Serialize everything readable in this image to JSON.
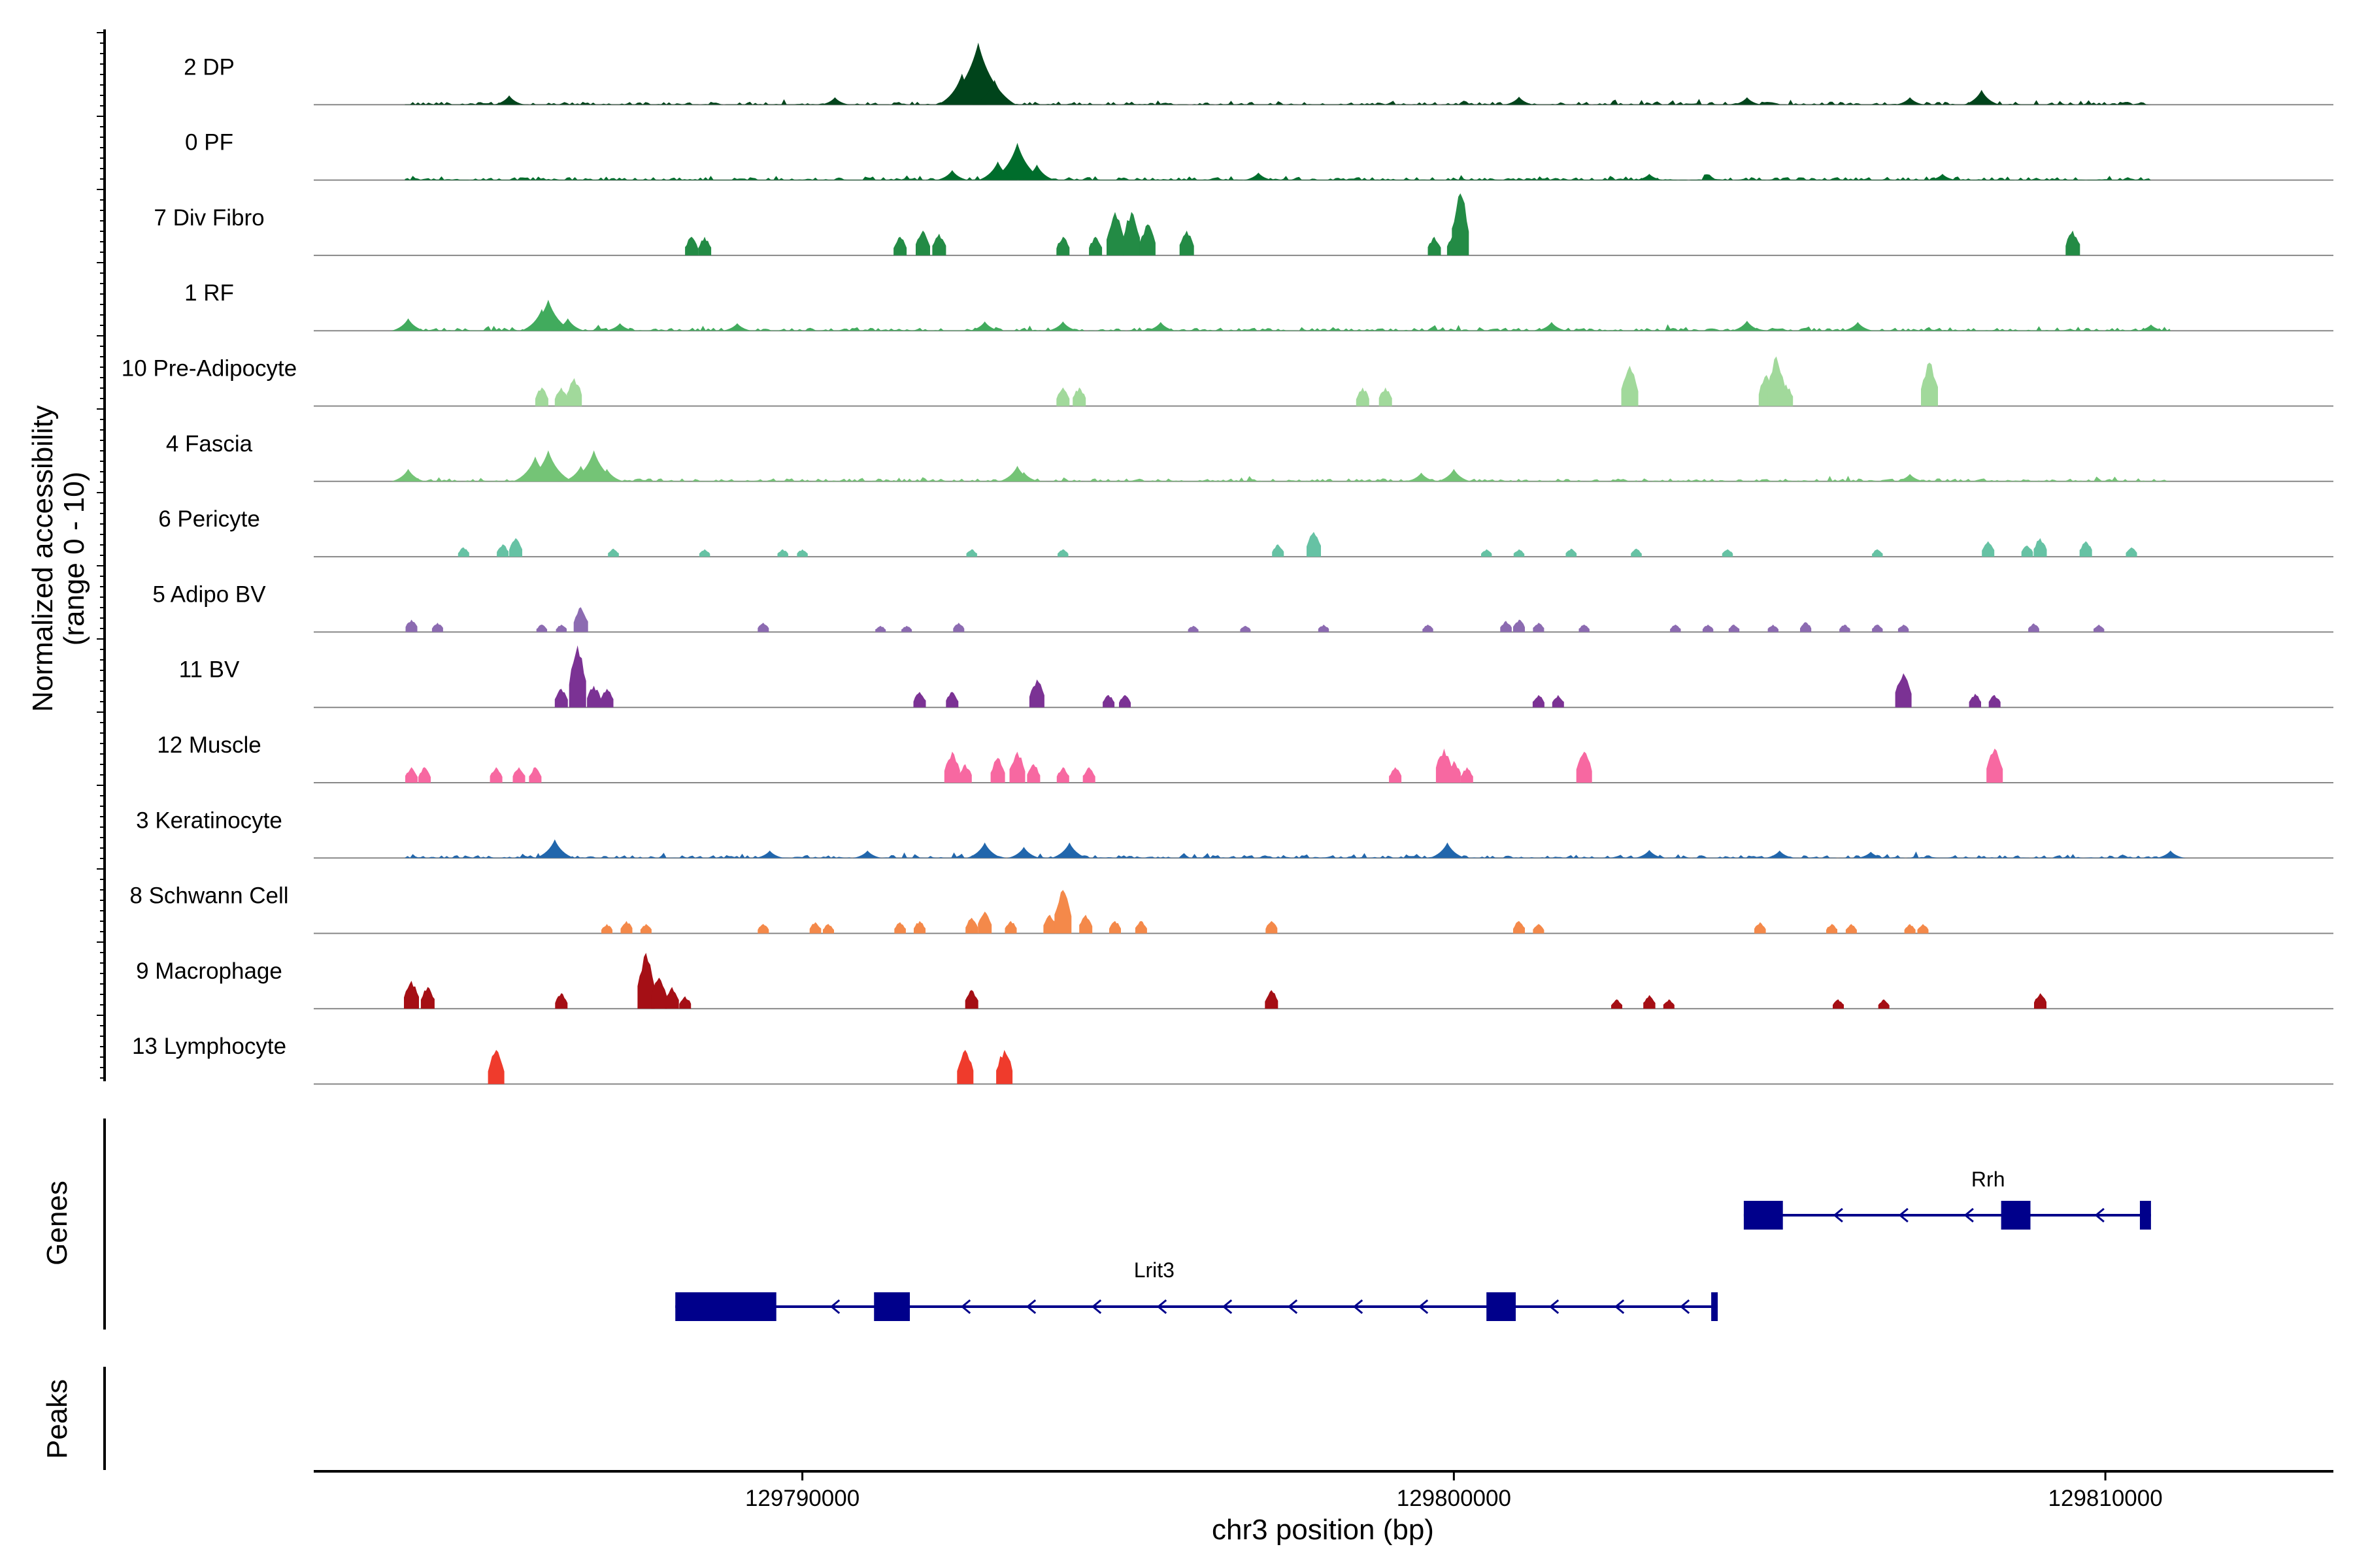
{
  "chart_data": {
    "type": "coverage_tracks",
    "title": "",
    "ylabel": [
      "Normalized accessibility",
      "(range 0 - 10)"
    ],
    "ylim": [
      0,
      10
    ],
    "xlabel": "chr3 position (bp)",
    "xlim": [
      129782500,
      129813500
    ],
    "xticks": [
      129790000,
      129800000,
      129810000
    ],
    "xtick_labels": [
      "129790000",
      "129800000",
      "129810000"
    ],
    "tracks": [
      {
        "name": "2 DP",
        "color": "#00441b",
        "style": "dense",
        "range": [
          129783900,
          129810700
        ],
        "peaks": [
          [
            129792700,
            10
          ],
          [
            129792450,
            5
          ],
          [
            129792950,
            4
          ],
          [
            129785500,
            1.5
          ],
          [
            129790500,
            1.2
          ],
          [
            129801000,
            1.3
          ],
          [
            129808100,
            2.4
          ],
          [
            129807000,
            1.2
          ],
          [
            129804500,
            1.2
          ]
        ]
      },
      {
        "name": "0 PF",
        "color": "#006d2c",
        "style": "dense",
        "range": [
          129783900,
          129810700
        ],
        "peaks": [
          [
            129793300,
            6
          ],
          [
            129793000,
            3
          ],
          [
            129793600,
            2.5
          ],
          [
            129792300,
            1.6
          ],
          [
            129797000,
            1.2
          ],
          [
            129803000,
            1
          ],
          [
            129807500,
            1
          ]
        ]
      },
      {
        "name": "7 Div Fibro",
        "color": "#238b45",
        "style": "sparse",
        "peaks": [
          [
            129788300,
            3
          ],
          [
            129788500,
            3
          ],
          [
            129791500,
            3
          ],
          [
            129791850,
            4
          ],
          [
            129792100,
            3.5
          ],
          [
            129794000,
            3
          ],
          [
            129794500,
            3
          ],
          [
            129794800,
            7
          ],
          [
            129795050,
            7
          ],
          [
            129795300,
            5
          ],
          [
            129795900,
            4
          ],
          [
            129799700,
            3
          ],
          [
            129800100,
            10
          ],
          [
            129800000,
            3.5
          ],
          [
            129809500,
            4
          ]
        ]
      },
      {
        "name": "1 RF",
        "color": "#41ab5d",
        "style": "dense",
        "range": [
          129783900,
          129811000
        ],
        "peaks": [
          [
            129783950,
            2
          ],
          [
            129786100,
            5
          ],
          [
            129786000,
            3.5
          ],
          [
            129786400,
            2
          ],
          [
            129787200,
            1.2
          ],
          [
            129789000,
            1.2
          ],
          [
            129792800,
            1.5
          ],
          [
            129794000,
            1.5
          ],
          [
            129795500,
            1.4
          ],
          [
            129801500,
            1.4
          ],
          [
            129804500,
            1.6
          ],
          [
            129806200,
            1.4
          ],
          [
            129810700,
            1
          ]
        ]
      },
      {
        "name": "10 Pre-Adipocyte",
        "color": "#a1d99b",
        "style": "sparse",
        "peaks": [
          [
            129786000,
            3
          ],
          [
            129786300,
            3
          ],
          [
            129786500,
            4.5
          ],
          [
            129794000,
            3
          ],
          [
            129794250,
            3
          ],
          [
            129798600,
            3
          ],
          [
            129798950,
            3
          ],
          [
            129802700,
            6.5
          ],
          [
            129804800,
            5
          ],
          [
            129804950,
            8
          ],
          [
            129805100,
            3.5
          ],
          [
            129807300,
            7
          ]
        ]
      },
      {
        "name": "4 Fascia",
        "color": "#74c476",
        "style": "dense",
        "range": [
          129783900,
          129811000
        ],
        "peaks": [
          [
            129783950,
            2
          ],
          [
            129785900,
            4
          ],
          [
            129786100,
            5
          ],
          [
            129786600,
            2.5
          ],
          [
            129786800,
            5
          ],
          [
            129787000,
            2
          ],
          [
            129793400,
            1.5
          ],
          [
            129793300,
            2.5
          ],
          [
            129799500,
            1.4
          ],
          [
            129800000,
            2
          ],
          [
            129807000,
            1.2
          ]
        ]
      },
      {
        "name": "6 Pericyte",
        "color": "#66c2a4",
        "style": "sparse",
        "peaks": [
          [
            129784800,
            1.5
          ],
          [
            129785400,
            2
          ],
          [
            129785600,
            3
          ],
          [
            129787100,
            1.3
          ],
          [
            129788500,
            1.2
          ],
          [
            129789700,
            1.2
          ],
          [
            129790000,
            1.2
          ],
          [
            129792600,
            1.2
          ],
          [
            129794000,
            1.2
          ],
          [
            129797300,
            2
          ],
          [
            129797850,
            4
          ],
          [
            129800500,
            1.2
          ],
          [
            129801000,
            1.2
          ],
          [
            129801800,
            1.3
          ],
          [
            129802800,
            1.3
          ],
          [
            129804200,
            1.2
          ],
          [
            129806500,
            1.2
          ],
          [
            129808200,
            2.5
          ],
          [
            129808800,
            1.8
          ],
          [
            129809000,
            3
          ],
          [
            129809700,
            2.5
          ],
          [
            129810400,
            1.5
          ]
        ]
      },
      {
        "name": "5 Adipo BV",
        "color": "#8c6bb1",
        "style": "sparse",
        "peaks": [
          [
            129784000,
            2
          ],
          [
            129784400,
            1.5
          ],
          [
            129786000,
            1.2
          ],
          [
            129786300,
            1.2
          ],
          [
            129786600,
            4
          ],
          [
            129789400,
            1.5
          ],
          [
            129791200,
            1
          ],
          [
            129791600,
            1
          ],
          [
            129792400,
            1.5
          ],
          [
            129796000,
            1
          ],
          [
            129796800,
            1
          ],
          [
            129798000,
            1.2
          ],
          [
            129799600,
            1.2
          ],
          [
            129800800,
            1.8
          ],
          [
            129801000,
            2
          ],
          [
            129801300,
            1.5
          ],
          [
            129802000,
            1.2
          ],
          [
            129803400,
            1.2
          ],
          [
            129803900,
            1.2
          ],
          [
            129804300,
            1.2
          ],
          [
            129804900,
            1.2
          ],
          [
            129805400,
            1.6
          ],
          [
            129806000,
            1.2
          ],
          [
            129806500,
            1.2
          ],
          [
            129806900,
            1.2
          ],
          [
            129808900,
            1.4
          ],
          [
            129809900,
            1.2
          ]
        ]
      },
      {
        "name": "11 BV",
        "color": "#7b3294",
        "style": "sparse",
        "peaks": [
          [
            129786300,
            3
          ],
          [
            129786550,
            10
          ],
          [
            129786800,
            3.5
          ],
          [
            129787000,
            3
          ],
          [
            129791800,
            2.5
          ],
          [
            129792300,
            2.5
          ],
          [
            129793600,
            4.5
          ],
          [
            129794700,
            2
          ],
          [
            129794950,
            2
          ],
          [
            129801300,
            2
          ],
          [
            129801600,
            2
          ],
          [
            129806900,
            5.5
          ],
          [
            129808000,
            2.2
          ],
          [
            129808300,
            2
          ]
        ]
      },
      {
        "name": "12 Muscle",
        "color": "#f768a1",
        "style": "sparse",
        "peaks": [
          [
            129784000,
            2.5
          ],
          [
            129784200,
            2.5
          ],
          [
            129785300,
            2.5
          ],
          [
            129785650,
            2.5
          ],
          [
            129785900,
            2.5
          ],
          [
            129792300,
            5
          ],
          [
            129792500,
            3
          ],
          [
            129793000,
            4
          ],
          [
            129793300,
            5
          ],
          [
            129793550,
            3
          ],
          [
            129794000,
            2.5
          ],
          [
            129794400,
            2.5
          ],
          [
            129799100,
            2.5
          ],
          [
            129799850,
            5.5
          ],
          [
            129800000,
            3.5
          ],
          [
            129800200,
            2.5
          ],
          [
            129802000,
            5
          ],
          [
            129808300,
            5.5
          ]
        ]
      },
      {
        "name": "3 Keratinocyte",
        "color": "#2166ac",
        "style": "dense",
        "range": [
          129783900,
          129811000
        ],
        "peaks": [
          [
            129786200,
            3
          ],
          [
            129789500,
            1.2
          ],
          [
            129791000,
            1.2
          ],
          [
            129792800,
            2.5
          ],
          [
            129793400,
            1.8
          ],
          [
            129794100,
            2.5
          ],
          [
            129799900,
            2.5
          ],
          [
            129803000,
            1.3
          ],
          [
            129805000,
            1.2
          ],
          [
            129806400,
            1
          ],
          [
            129811000,
            1.2
          ]
        ]
      },
      {
        "name": "8 Schwann Cell",
        "color": "#f4894a",
        "style": "sparse",
        "peaks": [
          [
            129787000,
            1.5
          ],
          [
            129787300,
            2
          ],
          [
            129787600,
            1.5
          ],
          [
            129789400,
            1.5
          ],
          [
            129790200,
            1.8
          ],
          [
            129790400,
            1.5
          ],
          [
            129791500,
            1.8
          ],
          [
            129791800,
            2
          ],
          [
            129792600,
            2.5
          ],
          [
            129792800,
            3.5
          ],
          [
            129793200,
            2
          ],
          [
            129793800,
            3
          ],
          [
            129794000,
            7
          ],
          [
            129794350,
            3
          ],
          [
            129794800,
            2
          ],
          [
            129795200,
            2
          ],
          [
            129797200,
            2
          ],
          [
            129801000,
            2
          ],
          [
            129801300,
            1.5
          ],
          [
            129804700,
            1.8
          ],
          [
            129805800,
            1.5
          ],
          [
            129806100,
            1.5
          ],
          [
            129807000,
            1.5
          ],
          [
            129807200,
            1.5
          ]
        ]
      },
      {
        "name": "9 Macrophage",
        "color": "#a50f15",
        "style": "sparse",
        "peaks": [
          [
            129784000,
            4.5
          ],
          [
            129784250,
            3.5
          ],
          [
            129786300,
            2.5
          ],
          [
            129787600,
            9
          ],
          [
            129787800,
            5
          ],
          [
            129788000,
            3.5
          ],
          [
            129788200,
            2
          ],
          [
            129792600,
            3
          ],
          [
            129797200,
            3
          ],
          [
            129802500,
            1.5
          ],
          [
            129803000,
            2.2
          ],
          [
            129803300,
            1.5
          ],
          [
            129805900,
            1.5
          ],
          [
            129806600,
            1.5
          ],
          [
            129809000,
            2.5
          ]
        ]
      },
      {
        "name": "13 Lymphocyte",
        "color": "#ef3b2c",
        "style": "sparse",
        "peaks": [
          [
            129785300,
            5.5
          ],
          [
            129792500,
            5.5
          ],
          [
            129793100,
            5.5
          ]
        ]
      }
    ],
    "genes_track": {
      "title": "Genes",
      "genes": [
        {
          "name": "Rrh",
          "strand": "-",
          "start": 129804450,
          "end": 129810700,
          "exons": [
            [
              129804450,
              129805050
            ],
            [
              129808400,
              129808850
            ],
            [
              129810530,
              129810700
            ]
          ]
        },
        {
          "name": "Lrit3",
          "strand": "-",
          "start": 129788050,
          "end": 129804050,
          "exons": [
            [
              129788050,
              129789600
            ],
            [
              129791100,
              129791650
            ],
            [
              129800500,
              129800950
            ],
            [
              129803950,
              129804050
            ]
          ]
        }
      ]
    },
    "peaks_track": {
      "title": "Peaks",
      "peaks": []
    }
  }
}
